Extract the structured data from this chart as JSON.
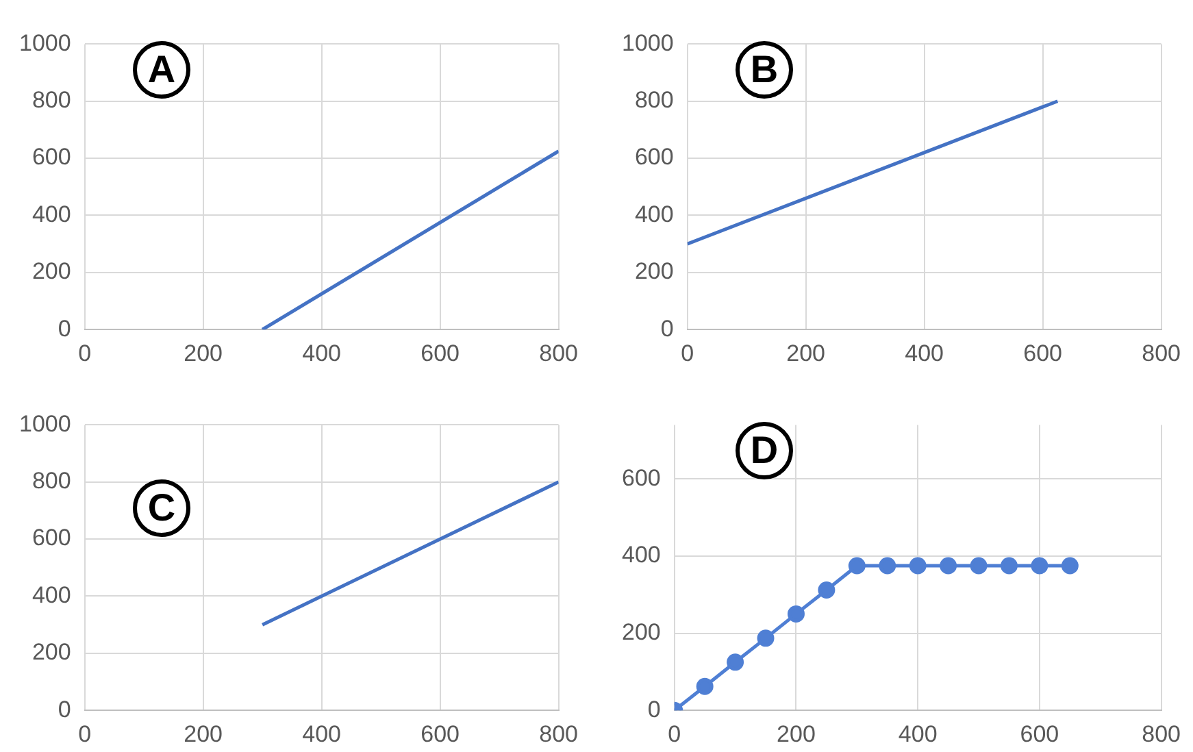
{
  "chart_data": [
    {
      "type": "line",
      "annotations": [
        "A"
      ],
      "x": [
        300,
        800
      ],
      "series": [
        {
          "color": "#4472c4",
          "values": [
            0,
            625
          ]
        }
      ],
      "xlim": [
        0,
        800
      ],
      "xticks": [
        0,
        200,
        400,
        600,
        800
      ],
      "ylim": [
        0,
        1000
      ],
      "yticks": [
        0,
        200,
        400,
        600,
        800,
        1000
      ],
      "grid": true
    },
    {
      "type": "line",
      "annotations": [
        "B"
      ],
      "x": [
        0,
        625
      ],
      "series": [
        {
          "color": "#4472c4",
          "values": [
            300,
            800
          ]
        }
      ],
      "xlim": [
        0,
        800
      ],
      "xticks": [
        0,
        200,
        400,
        600,
        800
      ],
      "ylim": [
        0,
        1000
      ],
      "yticks": [
        0,
        200,
        400,
        600,
        800,
        1000
      ],
      "grid": true
    },
    {
      "type": "line",
      "annotations": [
        "C"
      ],
      "x": [
        300,
        800
      ],
      "series": [
        {
          "color": "#4472c4",
          "values": [
            300,
            800
          ]
        }
      ],
      "xlim": [
        0,
        800
      ],
      "xticks": [
        0,
        200,
        400,
        600,
        800
      ],
      "ylim": [
        0,
        1000
      ],
      "yticks": [
        0,
        200,
        400,
        600,
        800,
        1000
      ],
      "grid": true
    },
    {
      "type": "line",
      "annotations": [
        "D"
      ],
      "x": [
        0,
        50,
        100,
        150,
        200,
        250,
        300,
        350,
        400,
        450,
        500,
        550,
        600,
        650
      ],
      "series": [
        {
          "color": "#4f7fd4",
          "values": [
            0,
            62,
            125,
            187,
            250,
            312,
            375,
            375,
            375,
            375,
            375,
            375,
            375,
            375
          ]
        }
      ],
      "xlim": [
        0,
        800
      ],
      "xticks": [
        0,
        200,
        400,
        600,
        800
      ],
      "ylim": [
        0,
        740
      ],
      "yticks": [
        0,
        200,
        400,
        600
      ],
      "grid": true,
      "marker": "circle"
    }
  ]
}
